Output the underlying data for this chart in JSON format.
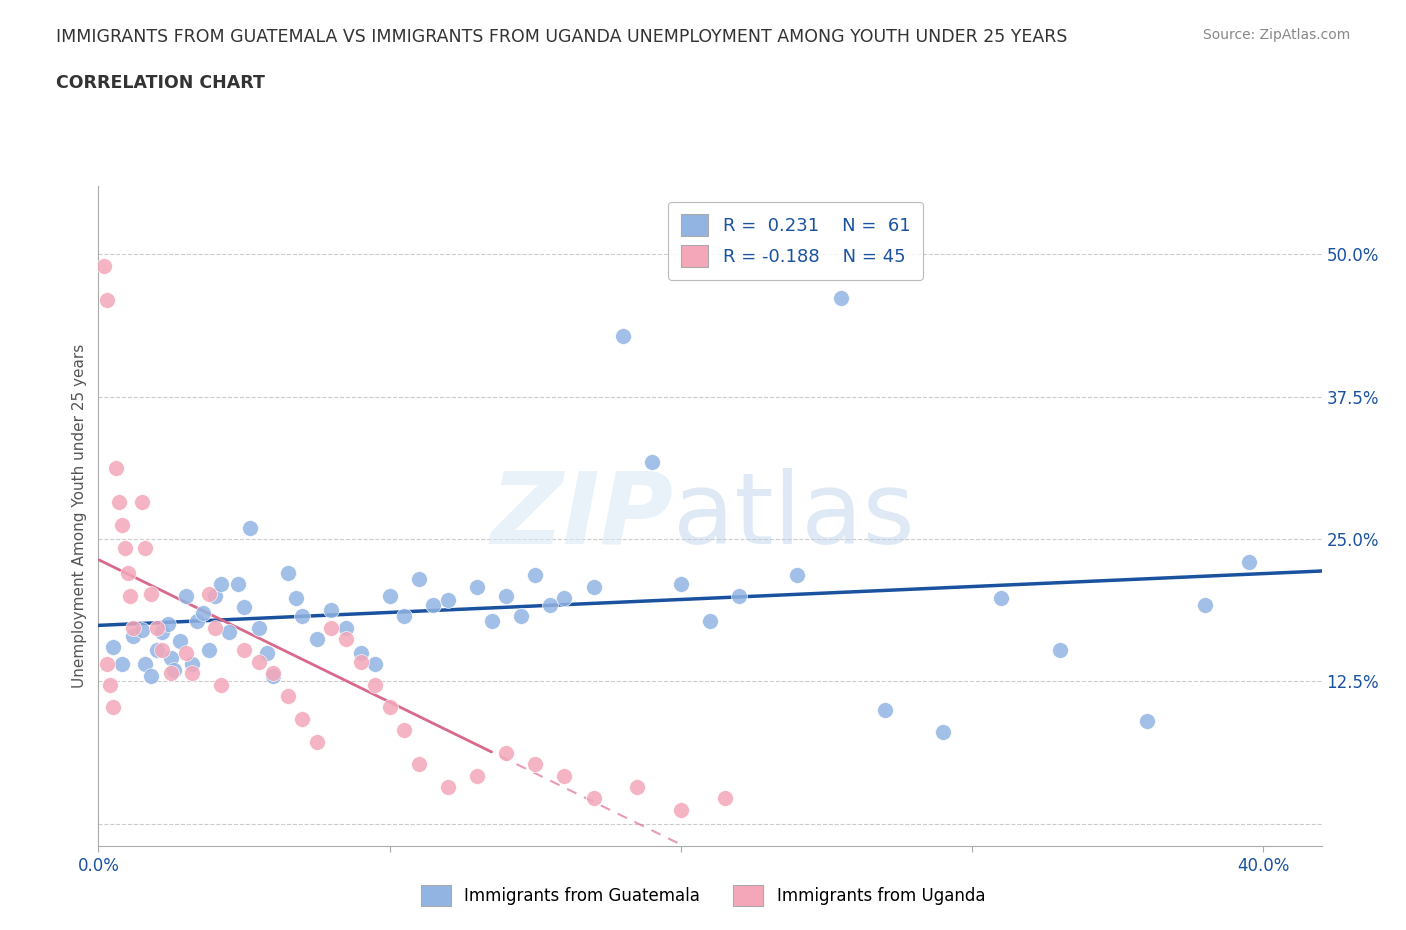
{
  "title_line1": "IMMIGRANTS FROM GUATEMALA VS IMMIGRANTS FROM UGANDA UNEMPLOYMENT AMONG YOUTH UNDER 25 YEARS",
  "title_line2": "CORRELATION CHART",
  "source": "Source: ZipAtlas.com",
  "ylabel": "Unemployment Among Youth under 25 years",
  "xlim": [
    0.0,
    0.42
  ],
  "ylim": [
    -0.02,
    0.56
  ],
  "yticks": [
    0.0,
    0.125,
    0.25,
    0.375,
    0.5
  ],
  "ytick_labels": [
    "",
    "12.5%",
    "25.0%",
    "37.5%",
    "50.0%"
  ],
  "xticks": [
    0.0,
    0.1,
    0.2,
    0.3,
    0.4
  ],
  "xtick_labels": [
    "0.0%",
    "",
    "",
    "",
    "40.0%"
  ],
  "color_guatemala": "#92b4e3",
  "color_uganda": "#f4a7b9",
  "line_color_guatemala": "#1a52a0",
  "line_color_uganda": "#d9698a",
  "R_guatemala": 0.231,
  "N_guatemala": 61,
  "R_uganda": -0.188,
  "N_uganda": 45,
  "legend_label_guatemala": "Immigrants from Guatemala",
  "legend_label_uganda": "Immigrants from Uganda",
  "background": "#ffffff",
  "grid_color": "#cccccc",
  "tick_color": "#1a52a0",
  "title_color": "#333333",
  "source_color": "#888888",
  "guatemala_x": [
    0.005,
    0.008,
    0.012,
    0.015,
    0.016,
    0.018,
    0.02,
    0.022,
    0.024,
    0.025,
    0.026,
    0.028,
    0.03,
    0.032,
    0.034,
    0.036,
    0.038,
    0.04,
    0.042,
    0.045,
    0.048,
    0.05,
    0.052,
    0.055,
    0.058,
    0.06,
    0.065,
    0.068,
    0.07,
    0.075,
    0.08,
    0.085,
    0.09,
    0.095,
    0.1,
    0.105,
    0.11,
    0.115,
    0.12,
    0.13,
    0.135,
    0.14,
    0.145,
    0.15,
    0.155,
    0.16,
    0.17,
    0.18,
    0.19,
    0.2,
    0.21,
    0.22,
    0.24,
    0.255,
    0.27,
    0.29,
    0.31,
    0.33,
    0.36,
    0.38,
    0.395
  ],
  "guatemala_y": [
    0.155,
    0.14,
    0.165,
    0.17,
    0.14,
    0.13,
    0.152,
    0.168,
    0.175,
    0.145,
    0.135,
    0.16,
    0.2,
    0.14,
    0.178,
    0.185,
    0.152,
    0.2,
    0.21,
    0.168,
    0.21,
    0.19,
    0.26,
    0.172,
    0.15,
    0.13,
    0.22,
    0.198,
    0.182,
    0.162,
    0.188,
    0.172,
    0.15,
    0.14,
    0.2,
    0.182,
    0.215,
    0.192,
    0.196,
    0.208,
    0.178,
    0.2,
    0.182,
    0.218,
    0.192,
    0.198,
    0.208,
    0.428,
    0.318,
    0.21,
    0.178,
    0.2,
    0.218,
    0.462,
    0.1,
    0.08,
    0.198,
    0.152,
    0.09,
    0.192,
    0.23
  ],
  "uganda_x": [
    0.002,
    0.003,
    0.003,
    0.004,
    0.005,
    0.006,
    0.007,
    0.008,
    0.009,
    0.01,
    0.011,
    0.012,
    0.015,
    0.016,
    0.018,
    0.02,
    0.022,
    0.025,
    0.03,
    0.032,
    0.038,
    0.04,
    0.042,
    0.05,
    0.055,
    0.06,
    0.065,
    0.07,
    0.075,
    0.08,
    0.085,
    0.09,
    0.095,
    0.1,
    0.105,
    0.11,
    0.12,
    0.13,
    0.14,
    0.15,
    0.16,
    0.17,
    0.185,
    0.2,
    0.215
  ],
  "uganda_y": [
    0.49,
    0.46,
    0.14,
    0.122,
    0.102,
    0.312,
    0.282,
    0.262,
    0.242,
    0.22,
    0.2,
    0.172,
    0.282,
    0.242,
    0.202,
    0.172,
    0.152,
    0.132,
    0.15,
    0.132,
    0.202,
    0.172,
    0.122,
    0.152,
    0.142,
    0.132,
    0.112,
    0.092,
    0.072,
    0.172,
    0.162,
    0.142,
    0.122,
    0.102,
    0.082,
    0.052,
    0.032,
    0.042,
    0.062,
    0.052,
    0.042,
    0.022,
    0.032,
    0.012,
    0.022
  ]
}
